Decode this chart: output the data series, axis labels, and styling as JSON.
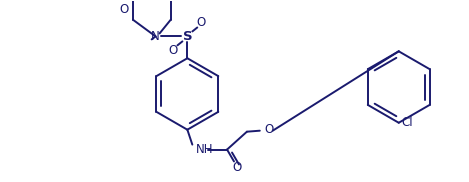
{
  "background_color": "#ffffff",
  "line_color": "#1a1a6e",
  "line_width": 1.4,
  "font_size": 8.5,
  "figsize": [
    4.69,
    1.82
  ],
  "dpi": 100,
  "xlim": [
    0,
    469
  ],
  "ylim": [
    0,
    182
  ]
}
